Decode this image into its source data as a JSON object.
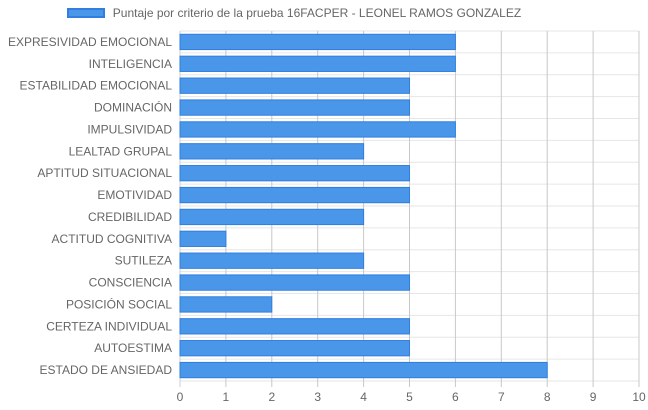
{
  "chart_data": {
    "type": "bar",
    "orientation": "horizontal",
    "categories": [
      "EXPRESIVIDAD EMOCIONAL",
      "INTELIGENCIA",
      "ESTABILIDAD EMOCIONAL",
      "DOMINACIÓN",
      "IMPULSIVIDAD",
      "LEALTAD GRUPAL",
      "APTITUD SITUACIONAL",
      "EMOTIVIDAD",
      "CREDIBILIDAD",
      "ACTITUD COGNITIVA",
      "SUTILEZA",
      "CONSCIENCIA",
      "POSICIÓN SOCIAL",
      "CERTEZA INDIVIDUAL",
      "AUTOESTIMA",
      "ESTADO DE ANSIEDAD"
    ],
    "series": [
      {
        "name": "Puntaje por criterio de la prueba 16FACPER - LEONEL RAMOS GONZALEZ",
        "values": [
          6,
          6,
          5,
          5,
          6,
          4,
          5,
          5,
          4,
          1,
          4,
          5,
          2,
          5,
          5,
          8
        ],
        "color": "#4a97ea",
        "border_color": "#2f7ee0"
      }
    ],
    "xlim": [
      0,
      10
    ],
    "x_ticks": [
      "0",
      "1",
      "2",
      "3",
      "4",
      "5",
      "6",
      "7",
      "8",
      "9",
      "10"
    ],
    "grid": true,
    "legend_position": "top"
  }
}
